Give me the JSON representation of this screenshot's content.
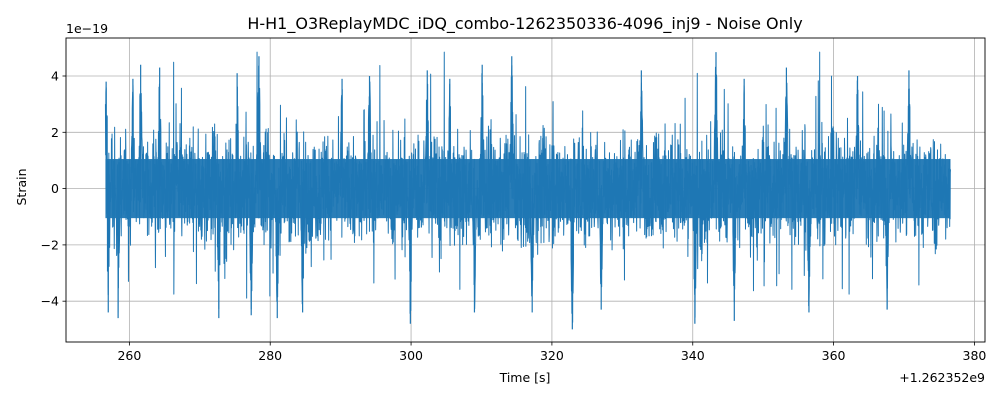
{
  "chart_data": {
    "type": "line",
    "title": "H-H1_O3ReplayMDC_iDQ_combo-1262350336-4096_inj9 - Noise Only",
    "xlabel": "Time [s]",
    "ylabel": "Strain",
    "x_offset_label": "+1.262352e9",
    "y_exponent_label": "1e−19",
    "xlim": [
      251,
      381.5
    ],
    "ylim": [
      -5.45,
      5.35
    ],
    "x_ticks": [
      260,
      280,
      300,
      320,
      340,
      360,
      380
    ],
    "x_tick_labels": [
      "260",
      "280",
      "300",
      "320",
      "340",
      "360",
      "380"
    ],
    "y_ticks": [
      -4,
      -2,
      0,
      2,
      4
    ],
    "y_tick_labels": [
      "−4",
      "−2",
      "0",
      "2",
      "4"
    ],
    "grid": true,
    "series": [
      {
        "color": "#1f77b4",
        "x_range": [
          256.6,
          376.6
        ],
        "core_amplitude": 1.0,
        "max": 4.85,
        "min": -5.0,
        "peaks": [
          {
            "x": 256.7,
            "y": 3.8
          },
          {
            "x": 257.0,
            "y": -4.4
          },
          {
            "x": 258.4,
            "y": -4.6
          },
          {
            "x": 260.5,
            "y": 3.9
          },
          {
            "x": 261.6,
            "y": 4.4
          },
          {
            "x": 264.3,
            "y": 4.3
          },
          {
            "x": 272.7,
            "y": -4.6
          },
          {
            "x": 275.3,
            "y": 4.1
          },
          {
            "x": 277.3,
            "y": -4.5
          },
          {
            "x": 278.4,
            "y": 4.7
          },
          {
            "x": 281.0,
            "y": -4.6
          },
          {
            "x": 284.6,
            "y": -4.4
          },
          {
            "x": 290.2,
            "y": 3.9
          },
          {
            "x": 294.1,
            "y": 4.0
          },
          {
            "x": 299.9,
            "y": -4.8
          },
          {
            "x": 302.3,
            "y": 4.2
          },
          {
            "x": 305.5,
            "y": 3.9
          },
          {
            "x": 309.0,
            "y": -4.4
          },
          {
            "x": 310.1,
            "y": 4.4
          },
          {
            "x": 314.3,
            "y": 4.7
          },
          {
            "x": 317.2,
            "y": -4.4
          },
          {
            "x": 322.9,
            "y": -5.0
          },
          {
            "x": 327.0,
            "y": -4.3
          },
          {
            "x": 332.7,
            "y": 4.2
          },
          {
            "x": 340.3,
            "y": -4.8
          },
          {
            "x": 343.3,
            "y": 4.85
          },
          {
            "x": 345.9,
            "y": -4.7
          },
          {
            "x": 347.3,
            "y": 3.9
          },
          {
            "x": 353.3,
            "y": 4.3
          },
          {
            "x": 356.5,
            "y": -4.4
          },
          {
            "x": 363.4,
            "y": 4.0
          },
          {
            "x": 367.6,
            "y": -4.3
          },
          {
            "x": 370.7,
            "y": 4.2
          }
        ]
      }
    ]
  }
}
